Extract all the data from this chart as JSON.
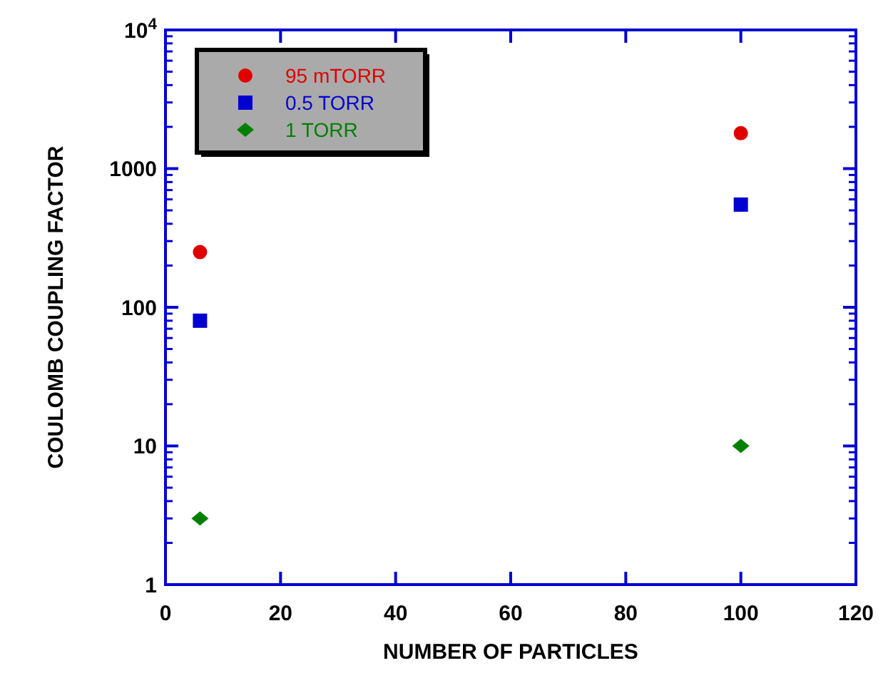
{
  "chart_data": {
    "type": "scatter",
    "xlabel": "NUMBER OF PARTICLES",
    "ylabel": "COULOMB COUPLING FACTOR",
    "x": [
      6,
      100
    ],
    "series": [
      {
        "name": "95 mTORR",
        "color": "#e00000",
        "values": [
          250,
          1800
        ],
        "marker": "circle"
      },
      {
        "name": "0.5 TORR",
        "color": "#0000d0",
        "values": [
          80,
          550
        ],
        "marker": "square"
      },
      {
        "name": "1 TORR",
        "color": "#008000",
        "values": [
          3,
          10
        ],
        "marker": "diamond"
      }
    ],
    "log": "y",
    "xlim": [
      0,
      120
    ],
    "xticks": [
      0,
      20,
      40,
      60,
      80,
      100,
      120
    ],
    "ylim": [
      1,
      10000
    ],
    "yticks": [
      1,
      10,
      100,
      1000,
      {
        "value": 10000,
        "label": "10$^{4}$"
      }
    ],
    "legend": "top left",
    "grid": false
  }
}
